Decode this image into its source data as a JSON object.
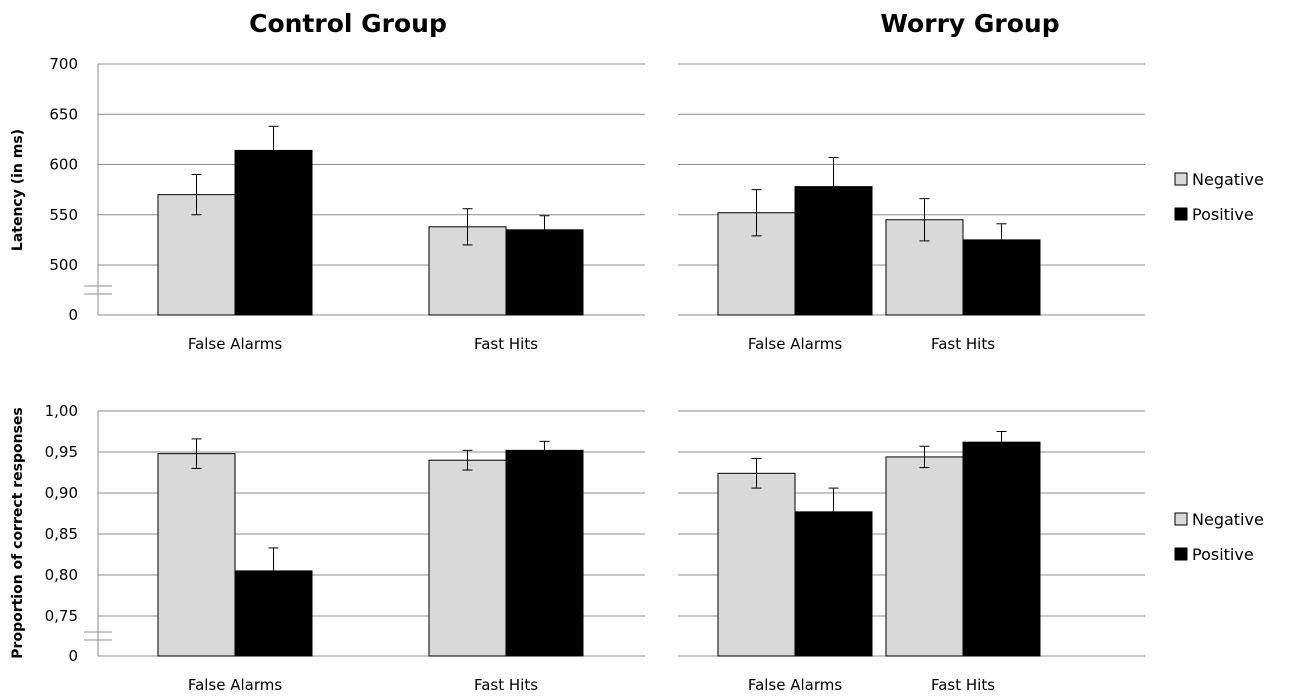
{
  "groups": [
    "Control Group",
    "Worry Group"
  ],
  "legend": [
    {
      "name": "Negative",
      "color": "#d9d9d9"
    },
    {
      "name": "Positive",
      "color": "#000000"
    }
  ],
  "chart_data": [
    {
      "type": "bar",
      "row": "top",
      "ylabel": "Latency (in ms)",
      "yticks": [
        "0",
        "500",
        "550",
        "600",
        "650",
        "700"
      ],
      "ylim": [
        450,
        700
      ],
      "axis_break": true,
      "categories": [
        "False Alarms",
        "Fast Hits"
      ],
      "panels": [
        {
          "group": "Control Group",
          "series": [
            {
              "name": "Negative",
              "values": [
                570,
                538
              ],
              "errors": [
                20,
                18
              ]
            },
            {
              "name": "Positive",
              "values": [
                614,
                535
              ],
              "errors": [
                24,
                14
              ]
            }
          ]
        },
        {
          "group": "Worry Group",
          "series": [
            {
              "name": "Negative",
              "values": [
                552,
                545
              ],
              "errors": [
                23,
                21
              ]
            },
            {
              "name": "Positive",
              "values": [
                578,
                525
              ],
              "errors": [
                29,
                16
              ]
            }
          ]
        }
      ],
      "grid": true,
      "legend_position": "right"
    },
    {
      "type": "bar",
      "row": "bottom",
      "ylabel": "Proportion of correct responses",
      "yticks": [
        "0",
        "0,75",
        "0,80",
        "0,85",
        "0,90",
        "0,95",
        "1,00"
      ],
      "ylim": [
        0.7,
        1.0
      ],
      "axis_break": true,
      "categories": [
        "False Alarms",
        "Fast Hits"
      ],
      "panels": [
        {
          "group": "Control Group",
          "series": [
            {
              "name": "Negative",
              "values": [
                0.948,
                0.94
              ],
              "errors": [
                0.018,
                0.012
              ]
            },
            {
              "name": "Positive",
              "values": [
                0.805,
                0.952
              ],
              "errors": [
                0.028,
                0.011
              ]
            }
          ]
        },
        {
          "group": "Worry Group",
          "series": [
            {
              "name": "Negative",
              "values": [
                0.924,
                0.944
              ],
              "errors": [
                0.018,
                0.013
              ]
            },
            {
              "name": "Positive",
              "values": [
                0.877,
                0.962
              ],
              "errors": [
                0.029,
                0.013
              ]
            }
          ]
        }
      ],
      "grid": true,
      "legend_position": "right"
    }
  ]
}
